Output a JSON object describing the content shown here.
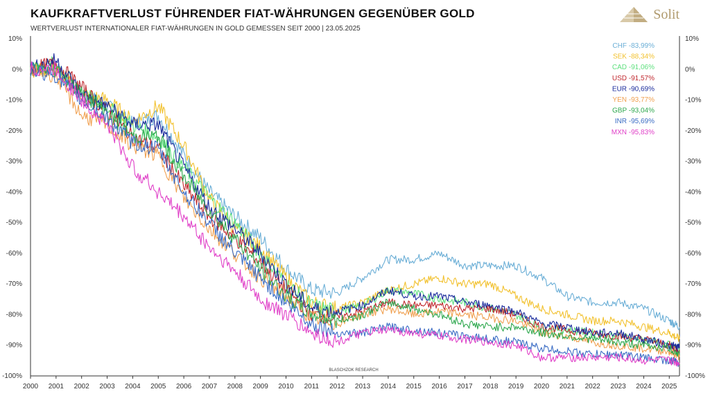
{
  "title": "KAUFKRAFTVERLUST FÜHRENDER FIAT-WÄHRUNGEN GEGENÜBER GOLD",
  "subtitle": "WERTVERLUST INTERNATIONALER FIAT-WÄHRUNGEN IN GOLD GEMESSEN SEIT 2000 | 23.05.2025",
  "brand": "Solit",
  "source_note": "BLASCHZOK RESEARCH",
  "chart_data": {
    "type": "line",
    "xlim": [
      2000,
      2025.4
    ],
    "ylim": [
      -100,
      10
    ],
    "x_ticks": [
      "2000",
      "2001",
      "2002",
      "2003",
      "2004",
      "2005",
      "2006",
      "2007",
      "2008",
      "2009",
      "2010",
      "2011",
      "2012",
      "2013",
      "2014",
      "2015",
      "2016",
      "2017",
      "2018",
      "2019",
      "2020",
      "2021",
      "2022",
      "2023",
      "2024",
      "2025"
    ],
    "y_ticks": [
      "10%",
      "0%",
      "-10%",
      "-20%",
      "-30%",
      "-40%",
      "-50%",
      "-60%",
      "-70%",
      "-80%",
      "-90%",
      "-100%"
    ],
    "legend_position": "top-right",
    "grid": false,
    "x": [
      2000,
      2001,
      2002,
      2003,
      2004,
      2005,
      2006,
      2007,
      2008,
      2009,
      2010,
      2011,
      2012,
      2013,
      2014,
      2015,
      2016,
      2017,
      2018,
      2019,
      2020,
      2021,
      2022,
      2023,
      2024,
      2025,
      2025.4
    ],
    "series": [
      {
        "name": "CHF",
        "label": "CHF -83,99%",
        "color": "#6aaed6",
        "values": [
          0,
          0,
          -8,
          -12,
          -18,
          -15,
          -28,
          -40,
          -48,
          -55,
          -65,
          -72,
          -73,
          -68,
          -62,
          -62,
          -60,
          -64,
          -64,
          -64,
          -68,
          -74,
          -76,
          -76,
          -78,
          -82,
          -84
        ]
      },
      {
        "name": "SEK",
        "label": "SEK -88,34%",
        "color": "#f2c12e",
        "values": [
          0,
          0,
          -8,
          -10,
          -17,
          -12,
          -25,
          -42,
          -52,
          -58,
          -68,
          -76,
          -78,
          -76,
          -72,
          -70,
          -68,
          -70,
          -70,
          -74,
          -78,
          -80,
          -82,
          -82,
          -84,
          -86,
          -88
        ]
      },
      {
        "name": "CAD",
        "label": "CAD -91,06%",
        "color": "#5ee07e",
        "values": [
          0,
          2,
          -8,
          -12,
          -18,
          -22,
          -32,
          -42,
          -50,
          -60,
          -70,
          -77,
          -79,
          -77,
          -72,
          -73,
          -75,
          -76,
          -78,
          -80,
          -84,
          -85,
          -86,
          -87,
          -88,
          -90,
          -91
        ]
      },
      {
        "name": "USD",
        "label": "USD -91,57%",
        "color": "#c0282e",
        "values": [
          0,
          2,
          -6,
          -14,
          -22,
          -26,
          -38,
          -48,
          -55,
          -63,
          -72,
          -80,
          -81,
          -79,
          -76,
          -77,
          -77,
          -78,
          -78,
          -80,
          -84,
          -85,
          -86,
          -87,
          -88,
          -90,
          -91.5
        ]
      },
      {
        "name": "EUR",
        "label": "EUR -90,69%",
        "color": "#1a2b9c",
        "values": [
          0,
          3,
          -8,
          -12,
          -18,
          -18,
          -32,
          -45,
          -52,
          -60,
          -70,
          -78,
          -79,
          -77,
          -72,
          -74,
          -74,
          -76,
          -77,
          -79,
          -83,
          -84,
          -86,
          -86,
          -88,
          -90,
          -90.7
        ]
      },
      {
        "name": "YEN",
        "label": "YEN -93,77%",
        "color": "#f0a050",
        "values": [
          0,
          -2,
          -15,
          -18,
          -25,
          -28,
          -42,
          -52,
          -60,
          -68,
          -74,
          -81,
          -83,
          -80,
          -78,
          -80,
          -79,
          -80,
          -81,
          -82,
          -86,
          -87,
          -89,
          -90,
          -91,
          -92,
          -93.8
        ]
      },
      {
        "name": "GBP",
        "label": "GBP -93,04%",
        "color": "#2ea84e",
        "values": [
          0,
          0,
          -8,
          -14,
          -22,
          -22,
          -35,
          -46,
          -55,
          -65,
          -74,
          -80,
          -82,
          -80,
          -76,
          -78,
          -80,
          -83,
          -84,
          -84,
          -86,
          -87,
          -88,
          -89,
          -90,
          -91,
          -93
        ]
      },
      {
        "name": "INR",
        "label": "INR -95,69%",
        "color": "#3a6cc4",
        "values": [
          0,
          -2,
          -10,
          -16,
          -24,
          -26,
          -40,
          -50,
          -60,
          -68,
          -76,
          -83,
          -86,
          -86,
          -84,
          -85,
          -86,
          -87,
          -88,
          -89,
          -91,
          -92,
          -93,
          -93,
          -94,
          -95,
          -95.7
        ]
      },
      {
        "name": "MXN",
        "label": "MXN -95,83%",
        "color": "#e040c8",
        "values": [
          0,
          0,
          -10,
          -18,
          -32,
          -40,
          -48,
          -58,
          -66,
          -75,
          -80,
          -86,
          -89,
          -86,
          -85,
          -86,
          -87,
          -88,
          -89,
          -90,
          -94,
          -94,
          -94,
          -94,
          -95,
          -95,
          -95.8
        ]
      }
    ]
  }
}
